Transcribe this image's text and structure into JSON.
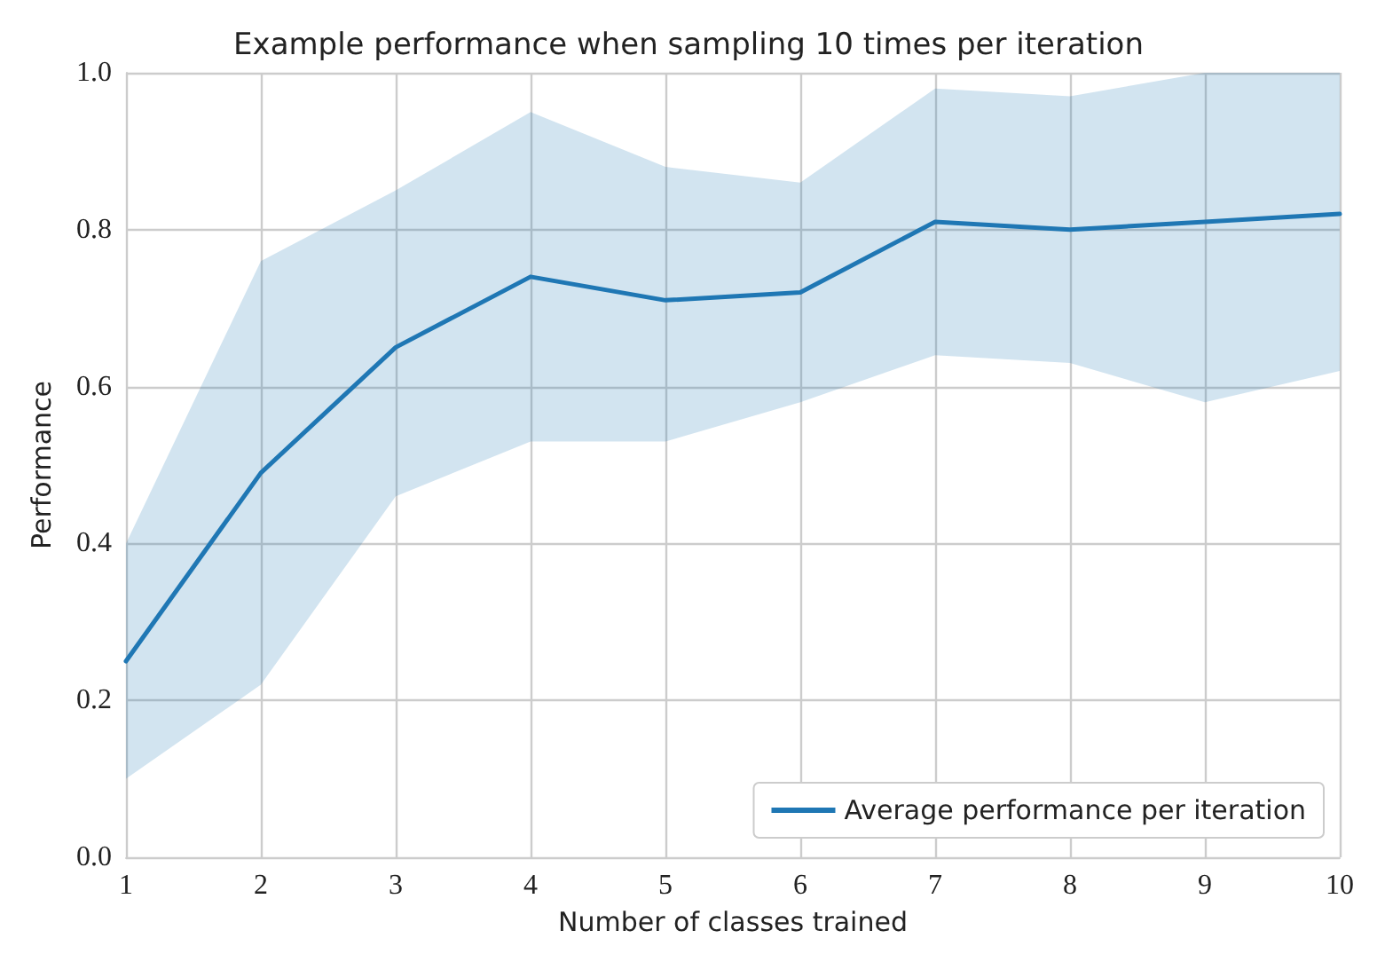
{
  "chart_data": {
    "type": "line",
    "title": "Example performance when sampling 10 times per iteration",
    "xlabel": "Number of classes trained",
    "ylabel": "Performance",
    "x": [
      1,
      2,
      3,
      4,
      5,
      6,
      7,
      8,
      9,
      10
    ],
    "series": [
      {
        "name": "Average performance per iteration",
        "color": "#1f77b4",
        "values": [
          0.25,
          0.49,
          0.65,
          0.74,
          0.71,
          0.72,
          0.81,
          0.8,
          0.81,
          0.82
        ],
        "lower": [
          0.1,
          0.22,
          0.46,
          0.53,
          0.53,
          0.58,
          0.64,
          0.63,
          0.58,
          0.62
        ],
        "upper": [
          0.4,
          0.76,
          0.85,
          0.95,
          0.88,
          0.86,
          0.98,
          0.97,
          1.0,
          1.0
        ]
      }
    ],
    "xlim": [
      1,
      10
    ],
    "xticks": [
      1,
      2,
      3,
      4,
      5,
      6,
      7,
      8,
      9,
      10
    ],
    "ylim": [
      0,
      1
    ],
    "yticks": [
      {
        "value": 0,
        "label": "0.0"
      },
      0.2,
      0.4,
      0.6,
      0.8,
      {
        "value": 1,
        "label": "1.0"
      }
    ],
    "grid": true,
    "legend": "bottom right",
    "marker": "none",
    "line_style": "solid"
  }
}
